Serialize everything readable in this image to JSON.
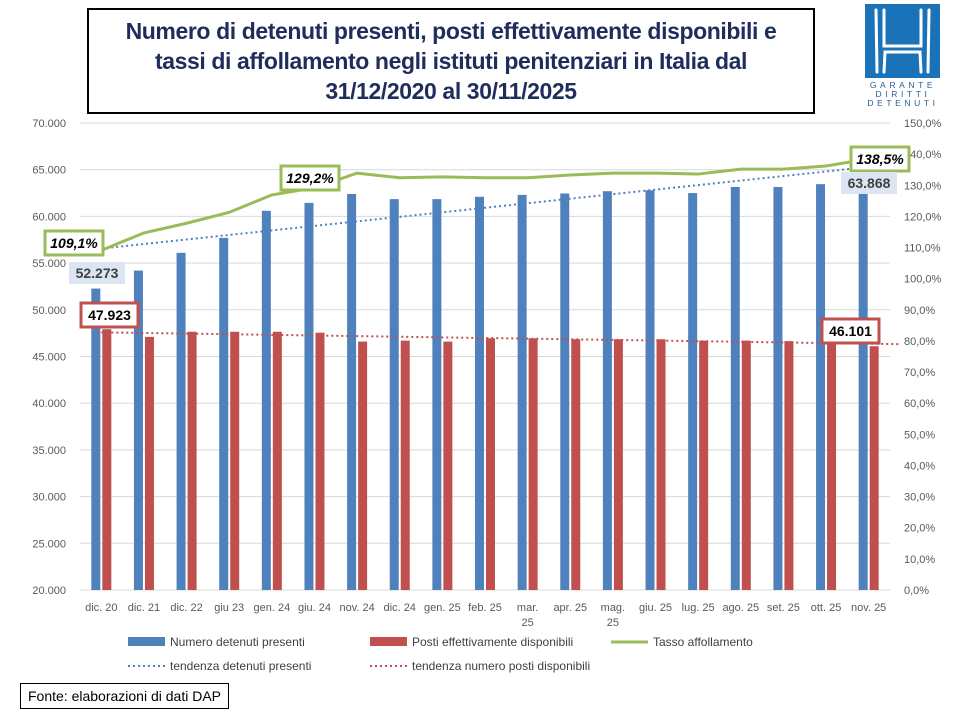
{
  "title": "Numero di detenuti presenti, posti effettivamente disponibili e\ntassi di affollamento negli istituti penitenziari in Italia dal\n31/12/2020 al 30/11/2025",
  "logo": {
    "lines": [
      "GARANTE",
      "DIRITTI",
      "DETENUTI"
    ]
  },
  "source": "Fonte: elaborazioni di dati DAP",
  "colors": {
    "blue": "#4f81bd",
    "red": "#c0504d",
    "green": "#9bbb59"
  },
  "chart_data": {
    "type": "bar",
    "categories": [
      "dic. 20",
      "dic. 21",
      "dic. 22",
      "giu 23",
      "gen. 24",
      "giu. 24",
      "nov. 24",
      "dic. 24",
      "gen. 25",
      "feb. 25",
      "mar.\n25",
      "apr. 25",
      "mag.\n25",
      "giu. 25",
      "lug. 25",
      "ago. 25",
      "set. 25",
      "ott. 25",
      "nov. 25"
    ],
    "y_left": {
      "min": 20000,
      "max": 70000,
      "step": 5000,
      "ticks": [
        "20.000",
        "25.000",
        "30.000",
        "35.000",
        "40.000",
        "45.000",
        "50.000",
        "55.000",
        "60.000",
        "65.000",
        "70.000"
      ]
    },
    "y_right": {
      "min": 0,
      "max": 150,
      "step": 10,
      "ticks": [
        "0,0%",
        "10,0%",
        "20,0%",
        "30,0%",
        "40,0%",
        "50,0%",
        "60,0%",
        "70,0%",
        "80,0%",
        "90,0%",
        "100,0%",
        "110,0%",
        "120,0%",
        "130,0%",
        "140,0%",
        "150,0%"
      ]
    },
    "grid": true,
    "series": [
      {
        "name": "Numero detenuti presenti",
        "type": "bar",
        "axis": "left",
        "values": [
          52273,
          54200,
          56100,
          57700,
          60600,
          61450,
          62400,
          61850,
          61850,
          62100,
          62300,
          62450,
          62700,
          62800,
          62500,
          63150,
          63150,
          63450,
          63868
        ]
      },
      {
        "name": "Posti effettivamente disponibili",
        "type": "bar",
        "axis": "left",
        "values": [
          47923,
          47100,
          47650,
          47650,
          47650,
          47550,
          46600,
          46700,
          46600,
          46950,
          46950,
          46850,
          46850,
          46850,
          46700,
          46700,
          46650,
          46650,
          46101
        ]
      },
      {
        "name": "Tasso affollamento",
        "type": "line",
        "axis": "right",
        "values": [
          109.1,
          114.7,
          117.8,
          121.3,
          126.9,
          129.2,
          133.9,
          132.4,
          132.7,
          132.4,
          132.4,
          133.3,
          133.9,
          133.9,
          133.6,
          135.2,
          135.2,
          136.2,
          138.5
        ]
      },
      {
        "name": "tendenza detenuti presenti",
        "type": "trend",
        "of": 0
      },
      {
        "name": "tendenza numero posti disponibili",
        "type": "trend",
        "of": 1
      }
    ],
    "data_labels": {
      "first_blue": "52.273",
      "last_blue": "63.868",
      "first_red": "47.923",
      "last_red": "46.101",
      "first_rate": "109,1%",
      "mid_rate": "129,2%",
      "last_rate": "138,5%"
    },
    "legend_position": "bottom"
  }
}
